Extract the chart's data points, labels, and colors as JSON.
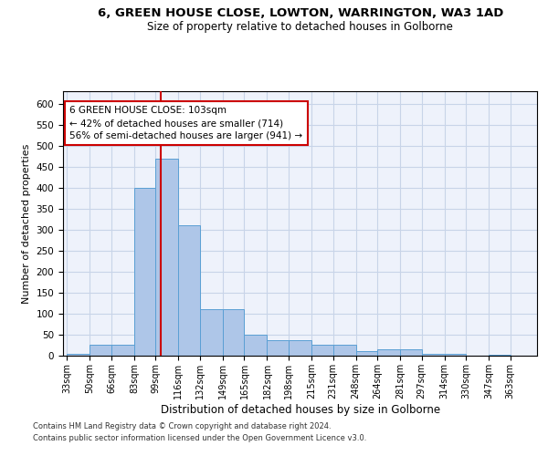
{
  "title1": "6, GREEN HOUSE CLOSE, LOWTON, WARRINGTON, WA3 1AD",
  "title2": "Size of property relative to detached houses in Golborne",
  "xlabel": "Distribution of detached houses by size in Golborne",
  "ylabel": "Number of detached properties",
  "bins": [
    "33sqm",
    "50sqm",
    "66sqm",
    "83sqm",
    "99sqm",
    "116sqm",
    "132sqm",
    "149sqm",
    "165sqm",
    "182sqm",
    "198sqm",
    "215sqm",
    "231sqm",
    "248sqm",
    "264sqm",
    "281sqm",
    "297sqm",
    "314sqm",
    "330sqm",
    "347sqm",
    "363sqm"
  ],
  "bin_edges": [
    33,
    50,
    66,
    83,
    99,
    116,
    132,
    149,
    165,
    182,
    198,
    215,
    231,
    248,
    264,
    281,
    297,
    314,
    330,
    347,
    363,
    380
  ],
  "bar_heights": [
    5,
    27,
    27,
    400,
    470,
    310,
    110,
    110,
    50,
    38,
    38,
    25,
    25,
    10,
    15,
    15,
    5,
    5,
    0,
    3,
    0
  ],
  "bar_color": "#aec6e8",
  "bar_edge_color": "#5a9fd4",
  "vline_x": 103,
  "vline_color": "#cc0000",
  "annotation_line1": "6 GREEN HOUSE CLOSE: 103sqm",
  "annotation_line2": "← 42% of detached houses are smaller (714)",
  "annotation_line3": "56% of semi-detached houses are larger (941) →",
  "annotation_box_color": "#ffffff",
  "annotation_box_edge": "#cc0000",
  "ylim": [
    0,
    630
  ],
  "yticks": [
    0,
    50,
    100,
    150,
    200,
    250,
    300,
    350,
    400,
    450,
    500,
    550,
    600
  ],
  "footer1": "Contains HM Land Registry data © Crown copyright and database right 2024.",
  "footer2": "Contains public sector information licensed under the Open Government Licence v3.0.",
  "bg_color": "#eef2fb",
  "grid_color": "#c8d4e8"
}
